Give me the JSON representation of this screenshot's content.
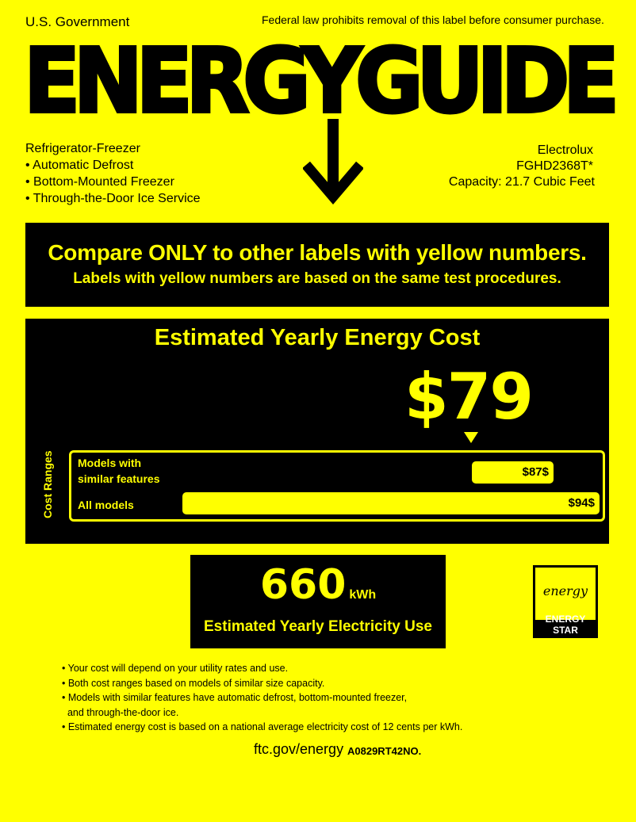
{
  "header": {
    "government": "U.S. Government",
    "law_notice": "Federal law prohibits removal of this label before consumer purchase.",
    "title": "ENERGYGUIDE"
  },
  "product": {
    "type": "Refrigerator-Freezer",
    "features": [
      "• Automatic Defrost",
      "• Bottom-Mounted Freezer",
      "• Through-the-Door Ice Service"
    ],
    "brand": "Electrolux",
    "model": "FGHD2368T*",
    "capacity": "Capacity: 21.7 Cubic Feet"
  },
  "compare": {
    "line1": "Compare ONLY to other labels with yellow numbers.",
    "line2": "Labels with yellow numbers are based on the same test procedures."
  },
  "cost": {
    "title": "Estimated Yearly Energy Cost",
    "value": "$79",
    "ranges_label": "Cost Ranges",
    "ranges": [
      {
        "label_line1": "Models with",
        "label_line2": "similar features",
        "max_label": "$87$"
      },
      {
        "label": "All models",
        "max_label": "$94$"
      }
    ]
  },
  "electricity": {
    "value": "660",
    "unit": "kWh",
    "label": "Estimated Yearly Electricity Use"
  },
  "energy_star": {
    "logo_text": "energy",
    "label": "ENERGY STAR"
  },
  "notes": [
    "• Your cost will depend on your utility rates and use.",
    "• Both cost ranges based on models of similar size capacity.",
    "• Models with similar features have automatic defrost, bottom-mounted freezer,",
    "  and through-the-door ice.",
    "• Estimated energy cost is based on a national average electricity cost of 12 cents per kWh."
  ],
  "footer": {
    "url": "ftc.gov/energy",
    "part_no": "A0829RT42NO."
  },
  "colors": {
    "background": "#ffff00",
    "panel": "#000000"
  }
}
